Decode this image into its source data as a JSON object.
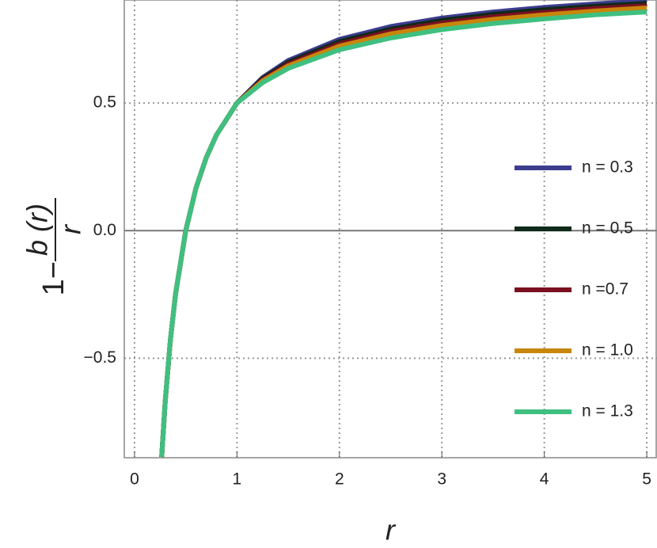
{
  "chart_data": {
    "type": "line",
    "ylabel": {
      "prefix": "1−",
      "numerator": "b (r)",
      "denominator": "r"
    },
    "xlabel": "r",
    "x": [
      0.265,
      0.3,
      0.35,
      0.4,
      0.5,
      0.6,
      0.7,
      0.8,
      1,
      1.25,
      1.5,
      2,
      2.5,
      3,
      3.5,
      4,
      4.5,
      5
    ],
    "series": [
      {
        "name": "n = 0.3",
        "color": "#3d3d8f",
        "values": [
          -0.887,
          -0.667,
          -0.429,
          -0.25,
          0,
          0.167,
          0.286,
          0.375,
          0.5,
          0.6,
          0.667,
          0.75,
          0.8,
          0.833,
          0.857,
          0.875,
          0.889,
          0.9
        ]
      },
      {
        "name": "n = 0.5",
        "color": "#0f2a1a",
        "values": [
          -0.887,
          -0.667,
          -0.429,
          -0.25,
          0,
          0.167,
          0.286,
          0.375,
          0.5,
          0.596,
          0.66,
          0.741,
          0.79,
          0.824,
          0.848,
          0.866,
          0.88,
          0.891
        ]
      },
      {
        "name": "n =0.7",
        "color": "#7a1020",
        "values": [
          -0.887,
          -0.667,
          -0.429,
          -0.25,
          0,
          0.167,
          0.286,
          0.375,
          0.5,
          0.591,
          0.653,
          0.732,
          0.781,
          0.814,
          0.838,
          0.856,
          0.871,
          0.882
        ]
      },
      {
        "name": "n = 1.0",
        "color": "#c8860a",
        "values": [
          -0.887,
          -0.667,
          -0.429,
          -0.25,
          0,
          0.167,
          0.286,
          0.375,
          0.5,
          0.587,
          0.646,
          0.723,
          0.771,
          0.804,
          0.828,
          0.846,
          0.861,
          0.873
        ]
      },
      {
        "name": "n = 1.3",
        "color": "#3fbf80",
        "values": [
          -0.887,
          -0.667,
          -0.429,
          -0.25,
          0,
          0.167,
          0.286,
          0.375,
          0.5,
          0.58,
          0.636,
          0.709,
          0.755,
          0.788,
          0.812,
          0.83,
          0.846,
          0.857
        ]
      }
    ],
    "xlim": [
      -0.1,
      5.1
    ],
    "ylim": [
      -0.89,
      0.904
    ],
    "xticks": [
      0,
      1,
      2,
      3,
      4,
      5
    ],
    "yticks": [
      {
        "value": -0.5,
        "label": "−0.5"
      },
      {
        "value": 0,
        "label": "0.0"
      },
      {
        "value": 0.5,
        "label": "0.5"
      }
    ],
    "grid": true,
    "legend": "right"
  }
}
